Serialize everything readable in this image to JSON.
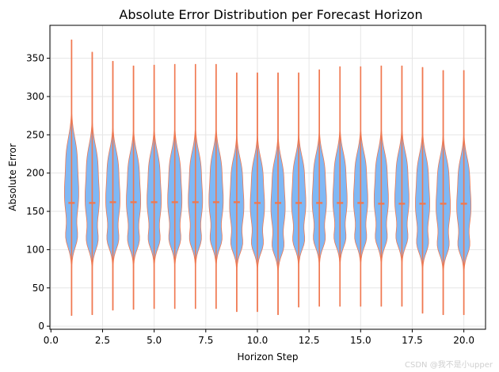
{
  "watermark": "CSDN @我不是小upper",
  "chart_data": {
    "type": "violin",
    "title": "Absolute Error Distribution per Forecast Horizon",
    "xlabel": "Horizon Step",
    "ylabel": "Absolute Error",
    "xlim": [
      -0.05,
      21.05
    ],
    "ylim": [
      -4,
      393
    ],
    "xticks": [
      0.0,
      2.5,
      5.0,
      7.5,
      10.0,
      12.5,
      15.0,
      17.5,
      20.0
    ],
    "yticks": [
      0,
      50,
      100,
      150,
      200,
      250,
      300,
      350
    ],
    "grid": true,
    "colors": {
      "body": "#7fb8f5",
      "edge": "#f07850",
      "median": "#f07850",
      "grid": "#e6e6e6"
    },
    "violins": [
      {
        "x": 1,
        "min": 14,
        "max": 374,
        "median": 161
      },
      {
        "x": 2,
        "min": 15,
        "max": 358,
        "median": 161
      },
      {
        "x": 3,
        "min": 21,
        "max": 346,
        "median": 162
      },
      {
        "x": 4,
        "min": 22,
        "max": 340,
        "median": 162
      },
      {
        "x": 5,
        "min": 23,
        "max": 341,
        "median": 162
      },
      {
        "x": 6,
        "min": 23,
        "max": 342,
        "median": 162
      },
      {
        "x": 7,
        "min": 23,
        "max": 342,
        "median": 162
      },
      {
        "x": 8,
        "min": 23,
        "max": 342,
        "median": 162
      },
      {
        "x": 9,
        "min": 19,
        "max": 331,
        "median": 162
      },
      {
        "x": 10,
        "min": 19,
        "max": 331,
        "median": 161
      },
      {
        "x": 11,
        "min": 15,
        "max": 331,
        "median": 161
      },
      {
        "x": 12,
        "min": 25,
        "max": 331,
        "median": 161
      },
      {
        "x": 13,
        "min": 26,
        "max": 335,
        "median": 161
      },
      {
        "x": 14,
        "min": 26,
        "max": 339,
        "median": 161
      },
      {
        "x": 15,
        "min": 26,
        "max": 339,
        "median": 161
      },
      {
        "x": 16,
        "min": 26,
        "max": 340,
        "median": 160
      },
      {
        "x": 17,
        "min": 26,
        "max": 340,
        "median": 160
      },
      {
        "x": 18,
        "min": 17,
        "max": 338,
        "median": 160
      },
      {
        "x": 19,
        "min": 15,
        "max": 334,
        "median": 160
      },
      {
        "x": 20,
        "min": 15,
        "max": 334,
        "median": 160
      }
    ]
  }
}
